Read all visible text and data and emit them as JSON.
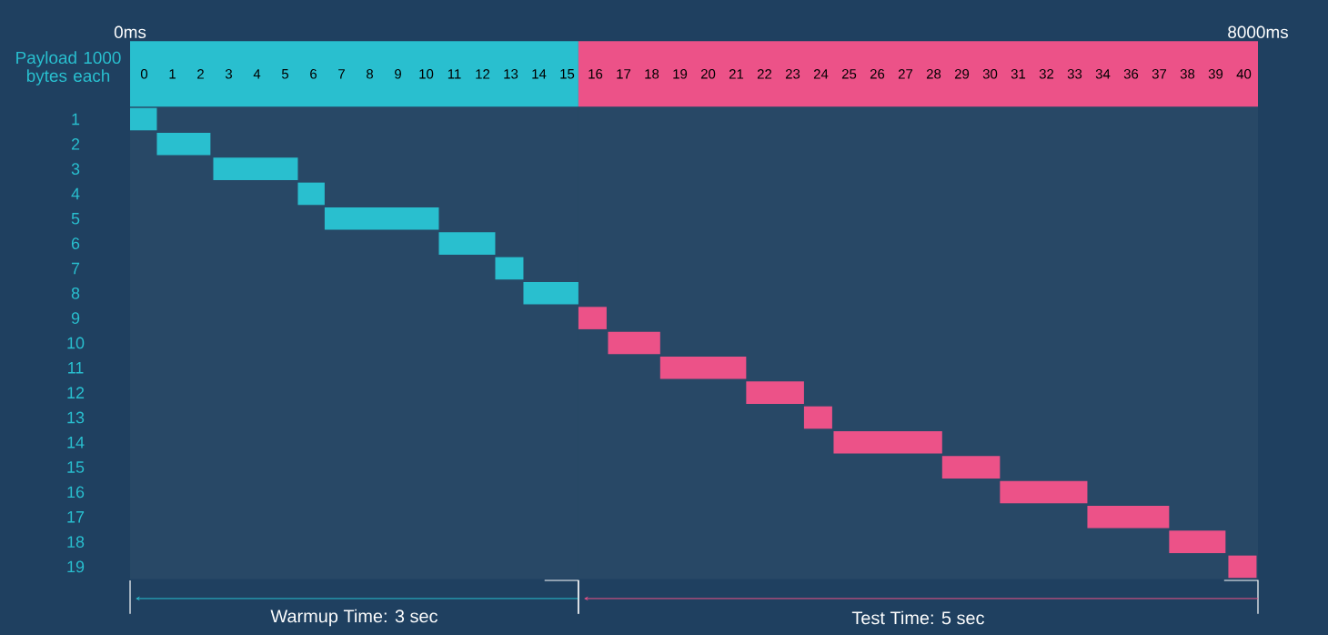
{
  "chart_data": {
    "type": "bar",
    "orientation": "horizontal",
    "ylabel": "Payload 1000 bytes each",
    "categories": [
      "1",
      "2",
      "3",
      "4",
      "5",
      "6",
      "7",
      "8",
      "9",
      "10",
      "11",
      "12",
      "13",
      "14",
      "15",
      "16",
      "17",
      "18",
      "19"
    ],
    "base": [
      0,
      190,
      590,
      1190,
      1380,
      2190,
      2590,
      2790,
      3180,
      3390,
      3760,
      4370,
      4780,
      4990,
      5760,
      6170,
      6790,
      7370,
      7790
    ],
    "values": [
      190,
      380,
      600,
      190,
      810,
      400,
      200,
      390,
      200,
      370,
      610,
      410,
      200,
      770,
      410,
      620,
      580,
      400,
      200
    ],
    "colors": [
      "#29bfcf",
      "#29bfcf",
      "#29bfcf",
      "#29bfcf",
      "#29bfcf",
      "#29bfcf",
      "#29bfcf",
      "#29bfcf",
      "#ec5288",
      "#ec5288",
      "#ec5288",
      "#ec5288",
      "#ec5288",
      "#ec5288",
      "#ec5288",
      "#ec5288",
      "#ec5288",
      "#ec5288",
      "#ec5288"
    ],
    "xlim": [
      0,
      8000
    ],
    "xticks": [
      {
        "value": 0,
        "label": "0ms"
      },
      {
        "value": 8000,
        "label": "8000ms"
      }
    ],
    "annotations": [
      "0",
      "1",
      "2",
      "3",
      "4",
      "5",
      "6",
      "7",
      "8",
      "9",
      "10",
      "11",
      "12",
      "13",
      "14",
      "15",
      "16",
      "17",
      "18",
      "19",
      "20",
      "21",
      "22",
      "23",
      "24",
      "25",
      "26",
      "27",
      "28",
      "29",
      "30",
      "31",
      "32",
      "33",
      "34",
      "36",
      "37",
      "38",
      "39",
      "40"
    ],
    "bands": [
      {
        "axis": "x",
        "from": 0,
        "to": 3180,
        "label": "Warmup Time: 3 sec"
      },
      {
        "axis": "x",
        "from": 3180,
        "to": 8000,
        "label": "Test Time: 5 sec"
      }
    ]
  }
}
